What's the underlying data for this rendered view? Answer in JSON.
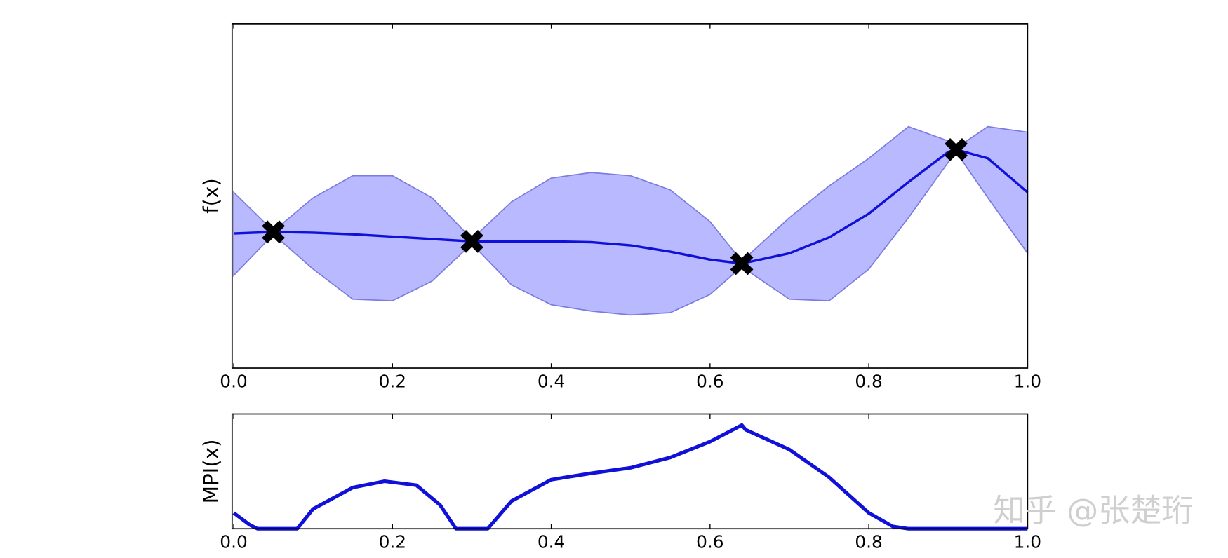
{
  "chart_data": [
    {
      "type": "line",
      "ylabel": "f(x)",
      "x": [
        0,
        0.05,
        0.1,
        0.15,
        0.2,
        0.25,
        0.3,
        0.35,
        0.4,
        0.45,
        0.5,
        0.55,
        0.6,
        0.64,
        0.7,
        0.75,
        0.8,
        0.85,
        0.9,
        0.91,
        0.95,
        1.0
      ],
      "series": [
        {
          "color": "#1010d8",
          "values": [
            170,
            172,
            171,
            169,
            166,
            163,
            160,
            160,
            160,
            159,
            155,
            147,
            137,
            132,
            145,
            165,
            195,
            235,
            273,
            276,
            265,
            222
          ]
        }
      ],
      "band": {
        "color": "#b9b9ff",
        "edge_color": "#7b7be0",
        "upper": [
          222,
          173,
          215,
          243,
          243,
          215,
          163,
          210,
          240,
          247,
          243,
          225,
          185,
          135,
          190,
          230,
          265,
          305,
          287,
          278,
          305,
          298
        ],
        "lower": [
          117,
          169,
          125,
          87,
          85,
          110,
          157,
          105,
          80,
          72,
          67,
          70,
          93,
          128,
          87,
          85,
          125,
          190,
          260,
          273,
          215,
          145
        ]
      },
      "points": {
        "color": "#000000",
        "x": [
          0.05,
          0.3,
          0.64,
          0.91
        ],
        "y": [
          172,
          160,
          132,
          276
        ]
      },
      "xlim": [
        -0.002,
        1.0
      ],
      "ylim": [
        0,
        435
      ],
      "xticks": [
        {
          "value": 0,
          "label": "0.0"
        },
        {
          "value": 0.2,
          "label": "0.2"
        },
        {
          "value": 0.4,
          "label": "0.4"
        },
        {
          "value": 0.6,
          "label": "0.6"
        },
        {
          "value": 0.8,
          "label": "0.8"
        },
        {
          "value": 1.0,
          "label": "1.0"
        }
      ]
    },
    {
      "type": "line",
      "ylabel": "MPI(x)",
      "x": [
        0,
        0.02,
        0.03,
        0.08,
        0.1,
        0.15,
        0.19,
        0.23,
        0.26,
        0.28,
        0.32,
        0.35,
        0.4,
        0.45,
        0.5,
        0.55,
        0.6,
        0.64,
        0.645,
        0.7,
        0.75,
        0.8,
        0.83,
        0.85,
        1.0
      ],
      "series": [
        {
          "color": "#1010d8",
          "values": [
            20,
            5,
            0,
            0,
            25,
            52,
            60,
            55,
            30,
            0,
            0,
            35,
            62,
            70,
            77,
            90,
            110,
            131,
            125,
            100,
            65,
            20,
            3,
            0,
            0
          ]
        }
      ],
      "xlim": [
        -0.002,
        1.0
      ],
      "ylim": [
        0,
        145
      ],
      "xticks": [
        {
          "value": 0,
          "label": "0.0"
        },
        {
          "value": 0.2,
          "label": "0.2"
        },
        {
          "value": 0.4,
          "label": "0.4"
        },
        {
          "value": 0.6,
          "label": "0.6"
        },
        {
          "value": 0.8,
          "label": "0.8"
        },
        {
          "value": 1.0,
          "label": "1.0"
        }
      ]
    }
  ],
  "watermark": "知乎 @张楚珩"
}
